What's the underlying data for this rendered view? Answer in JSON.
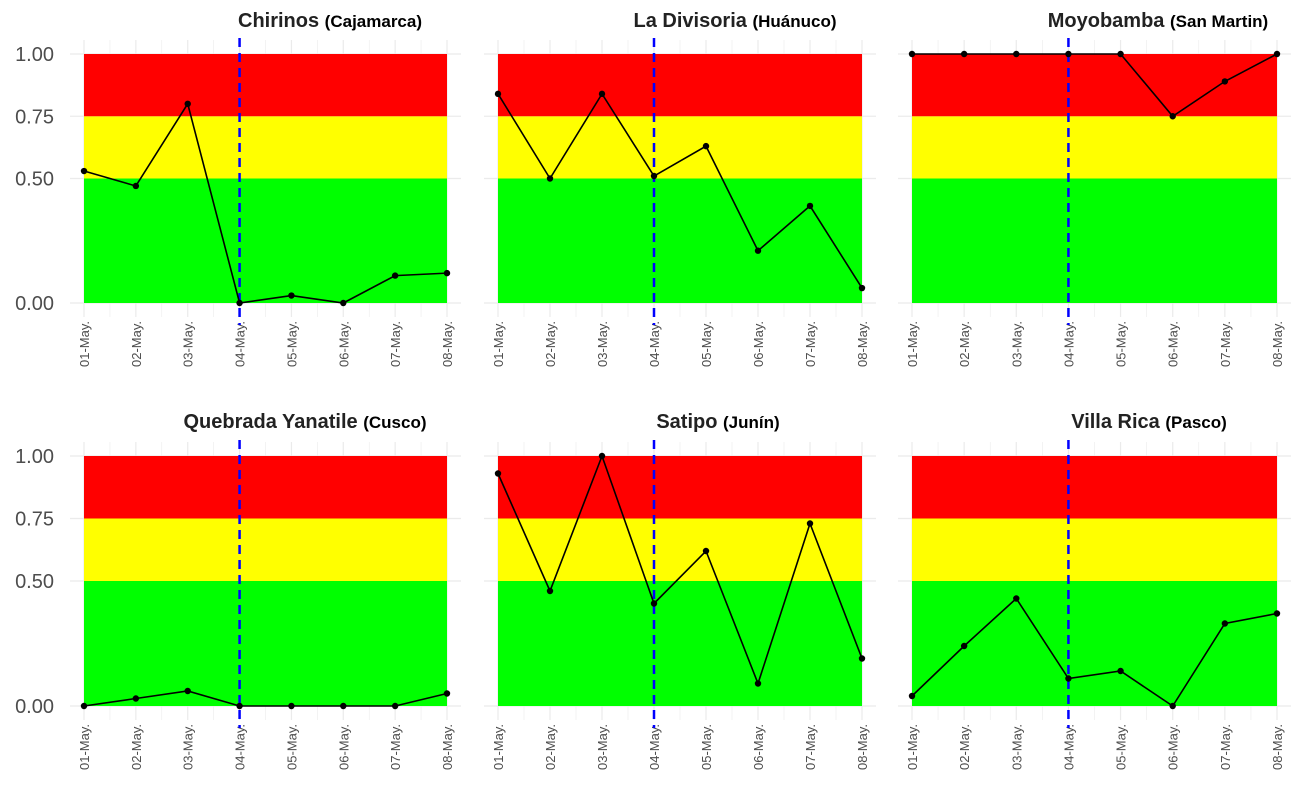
{
  "colors": {
    "low_band": "#00ff00",
    "mid_band": "#ffff00",
    "high_band": "#ff0000",
    "line": "#000000",
    "event_line": "#0000ff",
    "grid": "#ebebeb"
  },
  "chart_data": [
    {
      "type": "line",
      "title": "Chirinos",
      "subtitle": "(Cajamarca)",
      "categories": [
        "01-May.",
        "02-May.",
        "03-May.",
        "04-May.",
        "05-May.",
        "06-May.",
        "07-May.",
        "08-May."
      ],
      "values": [
        0.53,
        0.47,
        0.8,
        0.0,
        0.03,
        0.0,
        0.11,
        0.12
      ],
      "ylim": [
        0,
        1
      ],
      "yticks": [
        "0.00",
        "0.50",
        "0.75",
        "1.00"
      ],
      "bands": [
        {
          "from": 0,
          "to": 0.5,
          "color": "#00ff00"
        },
        {
          "from": 0.5,
          "to": 0.75,
          "color": "#ffff00"
        },
        {
          "from": 0.75,
          "to": 1,
          "color": "#ff0000"
        }
      ],
      "event_line": "04-May.",
      "grid": true
    },
    {
      "type": "line",
      "title": "La Divisoria",
      "subtitle": "(Huánuco)",
      "categories": [
        "01-May.",
        "02-May.",
        "03-May.",
        "04-May.",
        "05-May.",
        "06-May.",
        "07-May.",
        "08-May."
      ],
      "values": [
        0.84,
        0.5,
        0.84,
        0.51,
        0.63,
        0.21,
        0.39,
        0.06
      ],
      "ylim": [
        0,
        1
      ],
      "yticks": [
        "0.00",
        "0.50",
        "0.75",
        "1.00"
      ],
      "bands": [
        {
          "from": 0,
          "to": 0.5,
          "color": "#00ff00"
        },
        {
          "from": 0.5,
          "to": 0.75,
          "color": "#ffff00"
        },
        {
          "from": 0.75,
          "to": 1,
          "color": "#ff0000"
        }
      ],
      "event_line": "04-May.",
      "grid": true
    },
    {
      "type": "line",
      "title": "Moyobamba",
      "subtitle": "(San Martin)",
      "categories": [
        "01-May.",
        "02-May.",
        "03-May.",
        "04-May.",
        "05-May.",
        "06-May.",
        "07-May.",
        "08-May."
      ],
      "values": [
        1.0,
        1.0,
        1.0,
        1.0,
        1.0,
        0.75,
        0.89,
        1.0
      ],
      "ylim": [
        0,
        1
      ],
      "yticks": [
        "0.00",
        "0.50",
        "0.75",
        "1.00"
      ],
      "bands": [
        {
          "from": 0,
          "to": 0.5,
          "color": "#00ff00"
        },
        {
          "from": 0.5,
          "to": 0.75,
          "color": "#ffff00"
        },
        {
          "from": 0.75,
          "to": 1,
          "color": "#ff0000"
        }
      ],
      "event_line": "04-May.",
      "grid": true
    },
    {
      "type": "line",
      "title": "Quebrada Yanatile",
      "subtitle": "(Cusco)",
      "categories": [
        "01-May.",
        "02-May.",
        "03-May.",
        "04-May.",
        "05-May.",
        "06-May.",
        "07-May.",
        "08-May."
      ],
      "values": [
        0.0,
        0.03,
        0.06,
        0.0,
        0.0,
        0.0,
        0.0,
        0.05
      ],
      "ylim": [
        0,
        1
      ],
      "yticks": [
        "0.00",
        "0.50",
        "0.75",
        "1.00"
      ],
      "bands": [
        {
          "from": 0,
          "to": 0.5,
          "color": "#00ff00"
        },
        {
          "from": 0.5,
          "to": 0.75,
          "color": "#ffff00"
        },
        {
          "from": 0.75,
          "to": 1,
          "color": "#ff0000"
        }
      ],
      "event_line": "04-May.",
      "grid": true
    },
    {
      "type": "line",
      "title": "Satipo",
      "subtitle": "(Junín)",
      "categories": [
        "01-May.",
        "02-May.",
        "03-May.",
        "04-May.",
        "05-May.",
        "06-May.",
        "07-May.",
        "08-May."
      ],
      "values": [
        0.93,
        0.46,
        1.0,
        0.41,
        0.62,
        0.09,
        0.73,
        0.19
      ],
      "ylim": [
        0,
        1
      ],
      "yticks": [
        "0.00",
        "0.50",
        "0.75",
        "1.00"
      ],
      "bands": [
        {
          "from": 0,
          "to": 0.5,
          "color": "#00ff00"
        },
        {
          "from": 0.5,
          "to": 0.75,
          "color": "#ffff00"
        },
        {
          "from": 0.75,
          "to": 1,
          "color": "#ff0000"
        }
      ],
      "event_line": "04-May.",
      "grid": true
    },
    {
      "type": "line",
      "title": "Villa Rica",
      "subtitle": "(Pasco)",
      "categories": [
        "01-May.",
        "02-May.",
        "03-May.",
        "04-May.",
        "05-May.",
        "06-May.",
        "07-May.",
        "08-May."
      ],
      "values": [
        0.04,
        0.24,
        0.43,
        0.11,
        0.14,
        0.0,
        0.33,
        0.37
      ],
      "ylim": [
        0,
        1
      ],
      "yticks": [
        "0.00",
        "0.50",
        "0.75",
        "1.00"
      ],
      "bands": [
        {
          "from": 0,
          "to": 0.5,
          "color": "#00ff00"
        },
        {
          "from": 0.5,
          "to": 0.75,
          "color": "#ffff00"
        },
        {
          "from": 0.75,
          "to": 1,
          "color": "#ff0000"
        }
      ],
      "event_line": "04-May.",
      "grid": true
    }
  ]
}
